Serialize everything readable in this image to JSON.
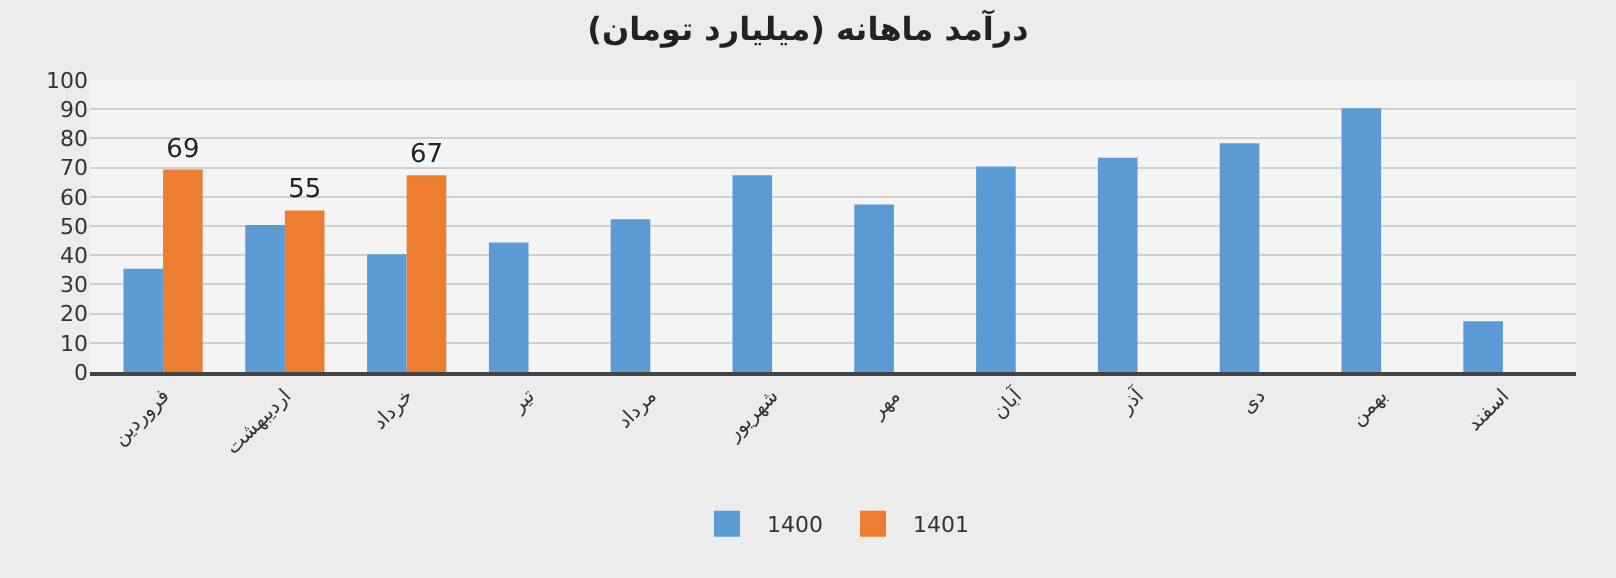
{
  "chart_data": {
    "type": "bar",
    "title": "درآمد ماهانه (میلیارد تومان)",
    "categories": [
      "فروردین",
      "اردیبهشت",
      "خرداد",
      "تیر",
      "مرداد",
      "شهریور",
      "مهر",
      "آبان",
      "آذر",
      "دی",
      "بهمن",
      "اسفند"
    ],
    "series": [
      {
        "name": "1400",
        "color": "#5b9bd5",
        "values": [
          35,
          50,
          40,
          44,
          52,
          67,
          57,
          70,
          73,
          78,
          90,
          17
        ]
      },
      {
        "name": "1401",
        "color": "#ed7d31",
        "values": [
          69,
          55,
          67,
          null,
          null,
          null,
          null,
          null,
          null,
          null,
          null,
          null
        ],
        "value_labels": [
          "69",
          "55",
          "67",
          null,
          null,
          null,
          null,
          null,
          null,
          null,
          null,
          null
        ]
      }
    ],
    "ylim": [
      0,
      100
    ],
    "yticks": [
      0,
      10,
      20,
      30,
      40,
      50,
      60,
      70,
      80,
      90,
      100
    ],
    "grid": "y",
    "legend": "bottom"
  }
}
